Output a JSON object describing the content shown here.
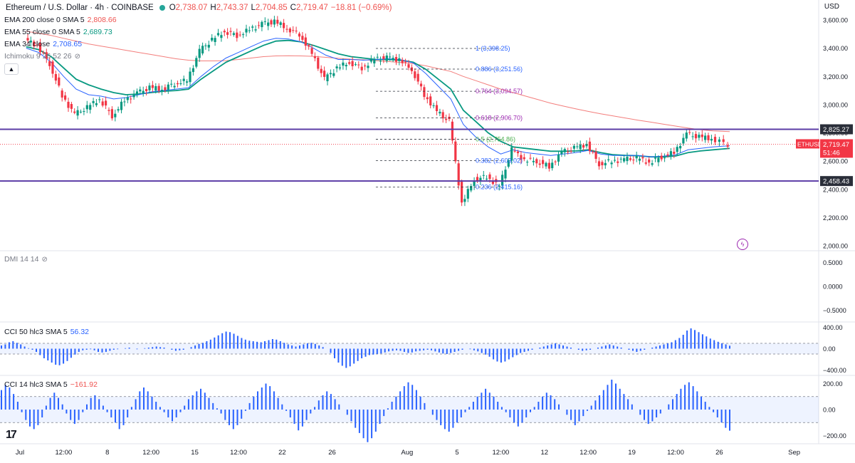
{
  "header": {
    "symbol": "Ethereum / U.S. Dollar · 4h · COINBASE",
    "o_label": "O",
    "o": "2,738.07",
    "h_label": "H",
    "h": "2,743.37",
    "l_label": "L",
    "l": "2,704.85",
    "c_label": "C",
    "c": "2,719.47",
    "change": "−18.81 (−0.69%)",
    "currency": "USD"
  },
  "indicators": {
    "ema200": {
      "label": "EMA 200 close 0 SMA 5",
      "value": "2,808.66",
      "color": "#ef5350"
    },
    "ema55": {
      "label": "EMA 55 close 0 SMA 5",
      "value": "2,689.73",
      "color": "#089981"
    },
    "ema34": {
      "label": "EMA 34 close",
      "value": "2,708.65",
      "color": "#2962ff"
    },
    "ichimoku": {
      "label": "Ichimoku 9 26 52 26"
    },
    "dmi": {
      "label": "DMI 14 14"
    },
    "cci50": {
      "label": "CCI 50 hlc3 SMA 5",
      "value": "56.32",
      "color": "#2962ff"
    },
    "cci14": {
      "label": "CCI 14 hlc3 SMA 5",
      "value": "−161.92",
      "color": "#2962ff"
    }
  },
  "chart_data": [
    {
      "type": "candlestick",
      "title": "Ethereum / U.S. Dollar · 4h · COINBASE",
      "y_ticks": [
        "3,600.00",
        "3,400.00",
        "3,200.00",
        "3,000.00",
        "2,800.00",
        "2,600.00",
        "2,400.00",
        "2,200.00",
        "2,000.00"
      ],
      "ylim": [
        1990,
        3660
      ],
      "x_ticks": [
        "Jul",
        "12:00",
        "8",
        "12:00",
        "15",
        "12:00",
        "22",
        "26",
        "Aug",
        "5",
        "12:00",
        "12",
        "12:00",
        "19",
        "12:00",
        "26",
        "Sep"
      ],
      "x_tick_dates": [
        "2024-07-01",
        "2024-07-04T12:00",
        "2024-07-08",
        "2024-07-11T12:00",
        "2024-07-15",
        "2024-07-18T12:00",
        "2024-07-22",
        "2024-07-26",
        "2024-08-01",
        "2024-08-05",
        "2024-08-08T12:00",
        "2024-08-12",
        "2024-08-15T12:00",
        "2024-08-19",
        "2024-08-22T12:00",
        "2024-08-26",
        "2024-09-01"
      ],
      "x_range": [
        "2024-07-01",
        "2024-09-02"
      ],
      "last_bar_date": "2024-08-26T20:00",
      "close_series": {
        "dates": [
          "2024-07-01",
          "2024-07-02",
          "2024-07-03",
          "2024-07-04",
          "2024-07-05",
          "2024-07-06",
          "2024-07-07",
          "2024-07-08",
          "2024-07-09",
          "2024-07-10",
          "2024-07-11",
          "2024-07-12",
          "2024-07-13",
          "2024-07-14",
          "2024-07-15",
          "2024-07-16",
          "2024-07-17",
          "2024-07-18",
          "2024-07-19",
          "2024-07-20",
          "2024-07-21",
          "2024-07-22",
          "2024-07-23",
          "2024-07-24",
          "2024-07-25",
          "2024-07-26",
          "2024-07-27",
          "2024-07-28",
          "2024-07-29",
          "2024-07-30",
          "2024-07-31",
          "2024-08-01",
          "2024-08-02",
          "2024-08-03",
          "2024-08-04",
          "2024-08-05",
          "2024-08-06",
          "2024-08-07",
          "2024-08-08",
          "2024-08-09",
          "2024-08-10",
          "2024-08-11",
          "2024-08-12",
          "2024-08-13",
          "2024-08-14",
          "2024-08-15",
          "2024-08-16",
          "2024-08-17",
          "2024-08-18",
          "2024-08-19",
          "2024-08-20",
          "2024-08-21",
          "2024-08-22",
          "2024-08-23",
          "2024-08-24",
          "2024-08-25",
          "2024-08-26"
        ],
        "values": [
          3460,
          3420,
          3290,
          3060,
          2930,
          2980,
          3040,
          2920,
          3030,
          3080,
          3120,
          3110,
          3150,
          3170,
          3380,
          3460,
          3520,
          3490,
          3530,
          3570,
          3590,
          3540,
          3500,
          3360,
          3180,
          3260,
          3300,
          3260,
          3320,
          3330,
          3320,
          3250,
          3070,
          2950,
          2880,
          2300,
          2470,
          2490,
          2420,
          2680,
          2610,
          2600,
          2560,
          2660,
          2690,
          2720,
          2580,
          2600,
          2610,
          2620,
          2590,
          2630,
          2660,
          2790,
          2770,
          2760,
          2719.47
        ]
      },
      "series": [
        {
          "name": "EMA 200",
          "values": [
            3520,
            3505,
            3490,
            3470,
            3450,
            3430,
            3415,
            3400,
            3385,
            3370,
            3355,
            3340,
            3325,
            3315,
            3310,
            3310,
            3312,
            3320,
            3330,
            3340,
            3345,
            3346,
            3345,
            3342,
            3335,
            3328,
            3322,
            3318,
            3312,
            3305,
            3298,
            3290,
            3275,
            3255,
            3235,
            3200,
            3170,
            3140,
            3110,
            3085,
            3060,
            3035,
            3010,
            2990,
            2970,
            2952,
            2935,
            2920,
            2905,
            2890,
            2876,
            2862,
            2848,
            2834,
            2822,
            2814,
            2808.66
          ]
        },
        {
          "name": "EMA 55",
          "values": [
            3410,
            3390,
            3340,
            3260,
            3180,
            3140,
            3110,
            3085,
            3070,
            3075,
            3085,
            3095,
            3100,
            3110,
            3180,
            3240,
            3300,
            3340,
            3380,
            3420,
            3450,
            3455,
            3445,
            3420,
            3390,
            3360,
            3340,
            3330,
            3320,
            3320,
            3315,
            3300,
            3250,
            3180,
            3110,
            2960,
            2880,
            2800,
            2740,
            2700,
            2690,
            2680,
            2670,
            2670,
            2672,
            2680,
            2660,
            2645,
            2640,
            2638,
            2630,
            2630,
            2636,
            2660,
            2672,
            2680,
            2689.73
          ]
        },
        {
          "name": "EMA 34",
          "values": [
            3400,
            3370,
            3300,
            3200,
            3110,
            3070,
            3060,
            3040,
            3050,
            3070,
            3090,
            3100,
            3110,
            3120,
            3200,
            3270,
            3330,
            3370,
            3410,
            3450,
            3470,
            3465,
            3445,
            3400,
            3350,
            3320,
            3320,
            3315,
            3320,
            3325,
            3318,
            3295,
            3220,
            3130,
            3040,
            2860,
            2770,
            2700,
            2650,
            2680,
            2660,
            2650,
            2640,
            2650,
            2660,
            2675,
            2650,
            2640,
            2640,
            2640,
            2630,
            2635,
            2645,
            2680,
            2690,
            2700,
            2708.65
          ]
        }
      ],
      "horizontal_lines": [
        {
          "value": 2825.27,
          "label": "2,825.27"
        },
        {
          "value": 2458.43,
          "label": "2,458.43"
        }
      ],
      "current_price": {
        "symbol": "ETHUSD",
        "value": "2,719.47",
        "countdown": "51:46"
      },
      "fibonacci": [
        {
          "ratio": "1",
          "value": 3398.25,
          "label": "1 (3,398.25)"
        },
        {
          "ratio": "0.886",
          "value": 3251.56,
          "label": "0.886 (3,251.56)"
        },
        {
          "ratio": "0.764",
          "value": 3094.57,
          "label": "0.764 (3,094.57)"
        },
        {
          "ratio": "0.618",
          "value": 2906.7,
          "label": "0.618 (2,906.70)"
        },
        {
          "ratio": "0.5",
          "value": 2754.86,
          "label": "0.5 (2,754.86)"
        },
        {
          "ratio": "0.382",
          "value": 2603.02,
          "label": "0.382 (2,603.02)"
        },
        {
          "ratio": "0.236",
          "value": 2415.16,
          "label": "0.236 (2,415.16)"
        }
      ],
      "fib_range": [
        "2024-07-29",
        "2024-08-08"
      ]
    },
    {
      "type": "line",
      "title": "DMI 14 14",
      "y_ticks": [
        "0.5000",
        "0.0000",
        "−0.5000"
      ],
      "ylim": [
        -0.6,
        0.6
      ],
      "values": []
    },
    {
      "type": "bar",
      "title": "CCI 50 hlc3 SMA 5",
      "y_ticks": [
        "400.00",
        "0.00",
        "−400.00"
      ],
      "ylim": [
        -420,
        420
      ],
      "bands": [
        100,
        -100
      ],
      "values": [
        60,
        80,
        120,
        140,
        110,
        80,
        40,
        10,
        -20,
        -60,
        -120,
        -180,
        -220,
        -260,
        -300,
        -310,
        -280,
        -230,
        -170,
        -110,
        -60,
        -30,
        -20,
        -10,
        -30,
        -60,
        -70,
        -60,
        -40,
        -20,
        -10,
        0,
        10,
        20,
        0,
        -10,
        0,
        10,
        20,
        30,
        40,
        30,
        20,
        0,
        -20,
        -40,
        -30,
        -20,
        0,
        30,
        60,
        90,
        110,
        140,
        170,
        210,
        250,
        290,
        320,
        310,
        280,
        240,
        200,
        170,
        150,
        140,
        130,
        120,
        140,
        160,
        180,
        170,
        140,
        110,
        80,
        60,
        40,
        60,
        80,
        100,
        110,
        90,
        60,
        30,
        0,
        -80,
        -180,
        -260,
        -320,
        -360,
        -330,
        -280,
        -230,
        -180,
        -150,
        -120,
        -110,
        -100,
        -90,
        -70,
        -50,
        -40,
        -30,
        -40,
        -60,
        -80,
        -70,
        -50,
        -40,
        -30,
        -20,
        -30,
        -50,
        -70,
        -90,
        -100,
        -80,
        -60,
        -40,
        -20,
        0,
        -10,
        -30,
        -50,
        -80,
        -110,
        -150,
        -200,
        -240,
        -260,
        -240,
        -200,
        -160,
        -120,
        -80,
        -60,
        -40,
        -20,
        0,
        20,
        40,
        60,
        80,
        100,
        80,
        60,
        40,
        20,
        0,
        -20,
        -40,
        -30,
        -20,
        0,
        20,
        40,
        60,
        80,
        60,
        40,
        20,
        0,
        -20,
        -40,
        -60,
        -40,
        -20,
        0,
        20,
        40,
        60,
        80,
        100,
        120,
        160,
        200,
        260,
        340,
        380,
        350,
        310,
        270,
        230,
        190,
        160,
        130,
        100,
        80,
        56.32
      ]
    },
    {
      "type": "bar",
      "title": "CCI 14 hlc3 SMA 5",
      "y_ticks": [
        "200.00",
        "0.00",
        "−200.00"
      ],
      "ylim": [
        -230,
        230
      ],
      "bands": [
        100,
        -100
      ],
      "values": [
        150,
        190,
        170,
        120,
        60,
        -20,
        -80,
        -130,
        -150,
        -120,
        -60,
        30,
        90,
        130,
        90,
        40,
        -30,
        -80,
        -110,
        -80,
        -20,
        40,
        90,
        110,
        80,
        30,
        -20,
        -60,
        -100,
        -150,
        -120,
        -60,
        20,
        80,
        140,
        170,
        140,
        100,
        60,
        20,
        -20,
        -60,
        -90,
        -60,
        -20,
        30,
        80,
        110,
        140,
        160,
        130,
        90,
        50,
        10,
        -30,
        -80,
        -120,
        -150,
        -120,
        -70,
        -10,
        50,
        100,
        140,
        170,
        200,
        180,
        140,
        90,
        40,
        -10,
        -60,
        -110,
        -160,
        -130,
        -80,
        -30,
        20,
        70,
        110,
        140,
        120,
        80,
        40,
        0,
        -40,
        -90,
        -140,
        -180,
        -220,
        -250,
        -220,
        -170,
        -110,
        -50,
        10,
        60,
        100,
        140,
        180,
        210,
        190,
        150,
        100,
        50,
        0,
        -40,
        -80,
        -120,
        -150,
        -170,
        -140,
        -100,
        -60,
        -20,
        20,
        60,
        100,
        130,
        160,
        130,
        100,
        60,
        20,
        -20,
        -60,
        -100,
        -130,
        -100,
        -60,
        -20,
        20,
        60,
        100,
        130,
        110,
        80,
        40,
        0,
        -40,
        -80,
        -120,
        -90,
        -50,
        -10,
        30,
        70,
        110,
        150,
        190,
        230,
        200,
        160,
        120,
        80,
        40,
        0,
        -40,
        -80,
        -110,
        -90,
        -60,
        -30,
        0,
        40,
        80,
        120,
        160,
        190,
        210,
        180,
        140,
        100,
        60,
        20,
        -20,
        -60,
        -100,
        -140,
        -161.92
      ]
    }
  ]
}
